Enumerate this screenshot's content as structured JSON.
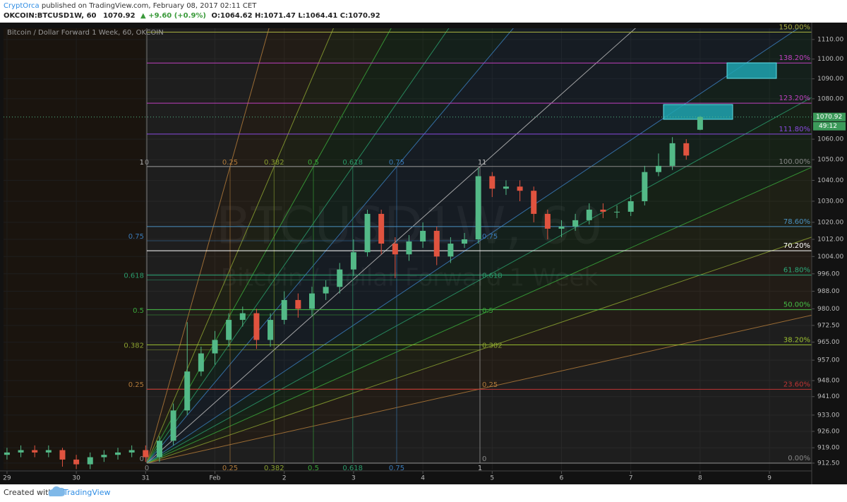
{
  "header": {
    "author": "CryptOrca",
    "published": "published on TradingView.com, February 08, 2017 02:11 CET",
    "symbol": "OKCOIN:BTCUSD1W, 60",
    "last": "1070.92",
    "change": "▲ +9.60 (+0.9%)",
    "ohlc": "O:1064.62 H:1071.47 L:1064.41 C:1070.92"
  },
  "chart_data": {
    "type": "candlestick",
    "title": "Bitcoin / Dollar Forward 1 Week, 60, OKCOIN",
    "watermark": "BTCUSD1W, 60",
    "watermark_sub": "Bitcoin / Dollar Forward 1 Week",
    "x": [
      29,
      29.2,
      29.4,
      29.6,
      29.8,
      30,
      30.2,
      30.4,
      30.6,
      30.8,
      31,
      31.2,
      31.4,
      31.6,
      31.8,
      32,
      32.2,
      32.4,
      32.6,
      32.8,
      33,
      33.2,
      33.4,
      33.6,
      33.8,
      34,
      34.2,
      34.4,
      34.6,
      34.8,
      35,
      35.2,
      35.4,
      35.6,
      35.8,
      36,
      36.2,
      36.4,
      36.6,
      36.8,
      37,
      37.2,
      37.4,
      37.6,
      37.8,
      38,
      38.2,
      38.4,
      38.6,
      38.8,
      39
    ],
    "open": [
      916,
      917,
      918,
      917,
      918,
      914,
      912,
      915,
      916,
      917,
      918,
      915,
      922,
      935,
      952,
      960,
      966,
      975,
      978,
      966,
      975,
      984,
      980,
      987,
      990,
      998,
      1006,
      1024,
      1010,
      1005,
      1011,
      1016,
      1004,
      1010,
      1012,
      1042,
      1036,
      1037,
      1035,
      1024,
      1017,
      1018,
      1021,
      1026,
      1025,
      1025,
      1030,
      1044,
      1047,
      1058,
      1064.62
    ],
    "high": [
      919,
      920,
      920,
      920,
      919,
      916,
      917,
      918,
      919,
      920,
      920,
      924,
      938,
      974,
      963,
      970,
      978,
      981,
      980,
      978,
      988,
      987,
      990,
      993,
      1001,
      1012,
      1026,
      1026,
      1013,
      1014,
      1020,
      1018,
      1013,
      1015,
      1046,
      1044,
      1040,
      1040,
      1037,
      1026,
      1021,
      1024,
      1029,
      1029,
      1028,
      1033,
      1047,
      1053,
      1061,
      1060,
      1071.47
    ],
    "low": [
      914,
      915,
      915,
      915,
      911,
      910,
      910,
      913,
      914,
      915,
      913,
      913,
      920,
      933,
      950,
      955,
      963,
      972,
      962,
      963,
      973,
      976,
      977,
      984,
      987,
      995,
      1004,
      1005,
      994,
      1002,
      1008,
      1000,
      1001,
      1008,
      1010,
      1032,
      1033,
      1030,
      1020,
      1012,
      1013,
      1016,
      1019,
      1022,
      1022,
      1023,
      1028,
      1042,
      1045,
      1050,
      1064.41
    ],
    "close": [
      917,
      918,
      917,
      918,
      914,
      912,
      915,
      916,
      917,
      918,
      915,
      922,
      935,
      952,
      960,
      966,
      975,
      978,
      966,
      975,
      984,
      980,
      987,
      990,
      998,
      1006,
      1024,
      1010,
      1005,
      1011,
      1016,
      1004,
      1010,
      1012,
      1042,
      1036,
      1037,
      1035,
      1024,
      1017,
      1018,
      1021,
      1026,
      1025,
      1025,
      1030,
      1044,
      1047,
      1058,
      1052,
      1070.92
    ],
    "up_color": "#53b987",
    "down_color": "#e0533f",
    "countdown": "49:12",
    "log_scale": true,
    "grid": true,
    "xlim": [
      28.95,
      40.61
    ],
    "xticks": [
      29,
      30,
      31,
      {
        "value": 32,
        "label": "Feb"
      },
      {
        "value": 33,
        "label": "2"
      },
      {
        "value": 34,
        "label": "3"
      },
      {
        "value": 35,
        "label": "4"
      },
      {
        "value": 36,
        "label": "5"
      },
      {
        "value": 37,
        "label": "6"
      },
      {
        "value": 38,
        "label": "7"
      },
      {
        "value": 39,
        "label": "8"
      },
      {
        "value": 40,
        "label": "9"
      }
    ],
    "ylim": [
      909.8,
      1115.8
    ],
    "yticks": [
      {
        "value": 912.5,
        "label": "912.50"
      },
      {
        "value": 919,
        "label": "919.00"
      },
      {
        "value": 926,
        "label": "926.00"
      },
      {
        "value": 933,
        "label": "933.00"
      },
      {
        "value": 941,
        "label": "941.00"
      },
      {
        "value": 948,
        "label": "948.00"
      },
      {
        "value": 957,
        "label": "957.00"
      },
      {
        "value": 965,
        "label": "965.00"
      },
      {
        "value": 972.5,
        "label": "972.50"
      },
      {
        "value": 980,
        "label": "980.00"
      },
      {
        "value": 988,
        "label": "988.00"
      },
      {
        "value": 996,
        "label": "996.00"
      },
      {
        "value": 1004,
        "label": "1004.00"
      },
      {
        "value": 1012,
        "label": "1012.00"
      },
      {
        "value": 1020,
        "label": "1020.00"
      },
      {
        "value": 1030,
        "label": "1030.00"
      },
      {
        "value": 1040,
        "label": "1040.00"
      },
      {
        "value": 1050,
        "label": "1050.00"
      },
      {
        "value": 1060,
        "label": "1060.00"
      },
      {
        "value": 1080,
        "label": "1080.00"
      },
      {
        "value": 1090,
        "label": "1090.00"
      },
      {
        "value": 1100,
        "label": "1100.00"
      },
      {
        "value": 1110,
        "label": "1110.00"
      }
    ],
    "fib_levels": [
      {
        "label": "0.00%",
        "price": 912.5,
        "color": "#888888"
      },
      {
        "label": "23.60%",
        "price": 944.2,
        "color": "#c03535"
      },
      {
        "label": "38.20%",
        "price": 963.8,
        "color": "#9cc030"
      },
      {
        "label": "50.00%",
        "price": 979.6,
        "color": "#46c046"
      },
      {
        "label": "61.80%",
        "price": 995.4,
        "color": "#2caa7a"
      },
      {
        "label": "70.20%",
        "price": 1006.7,
        "color": "#ffffff"
      },
      {
        "label": "78.60%",
        "price": 1018.0,
        "color": "#4a90c0"
      },
      {
        "label": "100.00%",
        "price": 1046.7,
        "color": "#888888"
      },
      {
        "label": "111.80%",
        "price": 1062.5,
        "color": "#8a4ae0"
      },
      {
        "label": "123.20%",
        "price": 1077.8,
        "color": "#c040c0"
      },
      {
        "label": "138.20%",
        "price": 1098.0,
        "color": "#c040c0"
      },
      {
        "label": "150.00%",
        "price": 1113.8,
        "color": "#a8b040"
      }
    ],
    "gann_fan": {
      "time_levels": [
        "0",
        "0.25",
        "0.382",
        "0.5",
        "0.618",
        "0.75",
        "1"
      ],
      "price_levels": [
        "1",
        "0.75",
        "0.618",
        "0.5",
        "0.382",
        "0.25",
        "0"
      ],
      "colors": [
        "#888888",
        "#b07a3a",
        "#8aa030",
        "#3aa63a",
        "#2a9a6a",
        "#3a7ab8",
        "#bbbbbb"
      ]
    }
  },
  "footer": {
    "created": "Created with",
    "brand": "TradingView"
  }
}
